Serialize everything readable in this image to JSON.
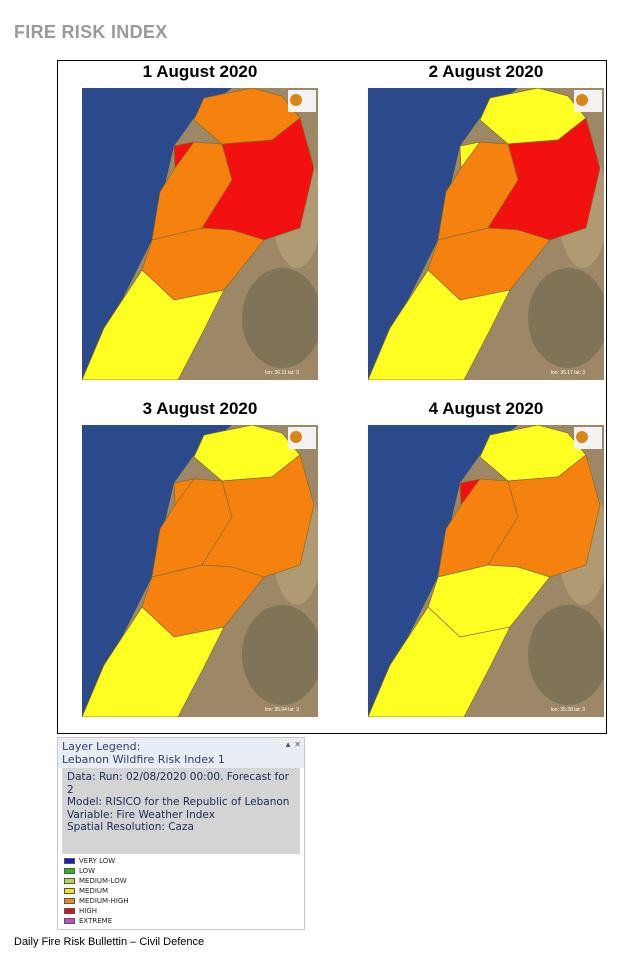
{
  "header": {
    "title": "FIRE RISK INDEX"
  },
  "maps": [
    {
      "date": "1 August 2020",
      "coords": "lon: 36.11 lat: 3"
    },
    {
      "date": "2 August 2020",
      "coords": "lon: 36.17 lat: 3"
    },
    {
      "date": "3 August 2020",
      "coords": "lon: 35.94 lat: 3"
    },
    {
      "date": "4 August 2020",
      "coords": "lon: 35.38 lat: 3"
    }
  ],
  "legend": {
    "title": "Layer Legend:",
    "layer": "Lebanon Wildfire Risk Index 1",
    "details": [
      "Data: Run: 02/08/2020 00:00. Forecast for 2",
      "Model: RISICO for the Republic of Lebanon",
      "Variable: Fire Weather Index",
      "Spatial Resolution: Caza"
    ],
    "classes": [
      {
        "label": "VERY LOW",
        "color": "#1a1acc"
      },
      {
        "label": "LOW",
        "color": "#22bb22"
      },
      {
        "label": "MEDIUM-LOW",
        "color": "#aadd44"
      },
      {
        "label": "MEDIUM",
        "color": "#f2e21a"
      },
      {
        "label": "MEDIUM-HIGH",
        "color": "#f08a1c"
      },
      {
        "label": "HIGH",
        "color": "#dd1111"
      },
      {
        "label": "EXTREME",
        "color": "#cc44cc"
      }
    ]
  },
  "footer": "Daily Fire Risk Bullettin – Civil Defence"
}
